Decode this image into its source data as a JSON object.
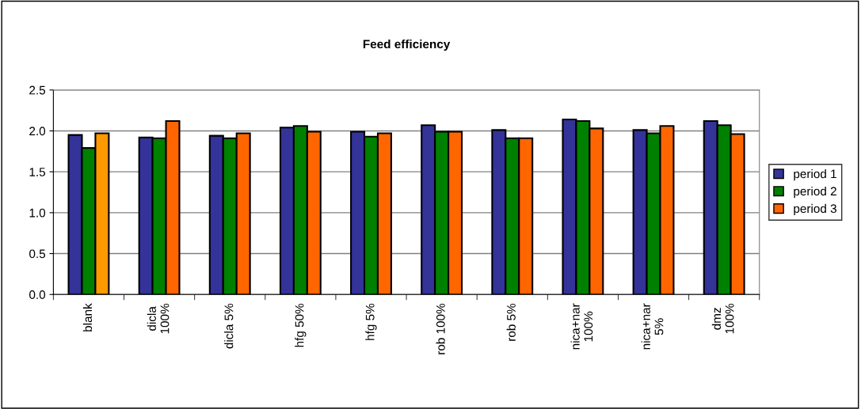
{
  "chart_data": {
    "type": "bar",
    "title": "Feed efficiency",
    "categories": [
      "blank",
      "dicla\n100%",
      "dicla 5%",
      "hfg 50%",
      "hfg 5%",
      "rob 100%",
      "rob 5%",
      "nica+nar\n100%",
      "nica+nar\n5%",
      "dmz\n100%"
    ],
    "series": [
      {
        "name": "period 1",
        "color": "#333399",
        "values": [
          1.95,
          1.92,
          1.94,
          2.04,
          1.99,
          2.07,
          2.01,
          2.14,
          2.01,
          2.12
        ]
      },
      {
        "name": "period 2",
        "color": "#008000",
        "values": [
          1.79,
          1.91,
          1.91,
          2.06,
          1.93,
          1.99,
          1.91,
          2.12,
          1.97,
          2.07
        ]
      },
      {
        "name": "period 3",
        "color": "#ff6600",
        "colors": [
          "#ff9900",
          "#ff6600",
          "#ff6600",
          "#ff6600",
          "#ff6600",
          "#ff6600",
          "#ff6600",
          "#ff6600",
          "#ff6600",
          "#ff6600"
        ],
        "values": [
          1.97,
          2.12,
          1.97,
          1.99,
          1.97,
          1.99,
          1.91,
          2.03,
          2.06,
          1.96
        ]
      }
    ],
    "ylim": [
      0,
      2.5
    ],
    "yticks": [
      {
        "value": 0,
        "label": "0.0"
      },
      {
        "value": 0.5,
        "label": "0.5"
      },
      {
        "value": 1,
        "label": "1.0"
      },
      {
        "value": 1.5,
        "label": "1.5"
      },
      {
        "value": 2,
        "label": "2.0"
      },
      {
        "value": 2.5,
        "label": "2.5"
      }
    ],
    "grid": "y",
    "legend": "right"
  }
}
